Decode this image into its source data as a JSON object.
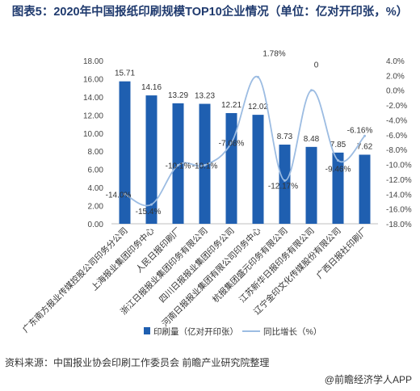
{
  "title": "图表5：2020年中国报纸印刷规模TOP10企业情况（单位：亿对开印张，%）",
  "source": "资料来源：中国报业协会印刷工作委员会 前瞻产业研究院整理",
  "brand": "@前瞻经济学人APP",
  "colors": {
    "bar": "#1f5fb0",
    "line": "#9cbce2",
    "title": "#1f3a6e"
  },
  "chart_data": {
    "type": "bar",
    "categories": [
      "广东南方报业传媒控股公司印务分公司",
      "上海报业集团印务中心",
      "人民日报印刷厂",
      "浙江日报报业集团印务有限公司",
      "四川日报报业集团印务公司",
      "河南日报报业集团有限公司印务中心",
      "杭报集团盛元印务有限公司",
      "江苏新华日报印务有限公司",
      "辽宁金印文化传媒股份有限公司",
      "广西日报社印刷厂"
    ],
    "series": [
      {
        "name": "印刷量（亿对开印张）",
        "type": "bar",
        "axis": "left",
        "values": [
          15.71,
          14.16,
          13.29,
          13.23,
          12.21,
          12.02,
          8.73,
          8.48,
          7.85,
          7.62
        ],
        "labels": [
          "15.71",
          "14.16",
          "13.29",
          "13.23",
          "12.21",
          "12.02",
          "8.73",
          "8.48",
          "7.85",
          "7.62"
        ]
      },
      {
        "name": "同比增长（%）",
        "type": "line",
        "axis": "right",
        "values": [
          -14.0,
          -15.4,
          -10.1,
          -10.1,
          -7.08,
          1.78,
          -12.17,
          0,
          -9.46,
          -6.16
        ],
        "labels": [
          "-14.0%",
          "-15.4%",
          "-10.1%",
          "-10.1%",
          "-7.08%",
          "1.78%",
          "-12.17%",
          "0",
          "-9.46%",
          "-6.16%"
        ]
      }
    ],
    "y_left": {
      "min": 0,
      "max": 18,
      "step": 2,
      "tick_labels": [
        "0.00",
        "2.00",
        "4.00",
        "6.00",
        "8.00",
        "10.00",
        "12.00",
        "14.00",
        "16.00",
        "18.00"
      ]
    },
    "y_right": {
      "min": -18,
      "max": 4,
      "step": 2,
      "tick_labels": [
        "-18.0%",
        "-16.0%",
        "-14.0%",
        "-12.0%",
        "-10.0%",
        "-8.0%",
        "-6.0%",
        "-4.0%",
        "-2.0%",
        "0.0%",
        "2.0%",
        "4.0%"
      ]
    },
    "grid": false,
    "legend": "bottom"
  }
}
